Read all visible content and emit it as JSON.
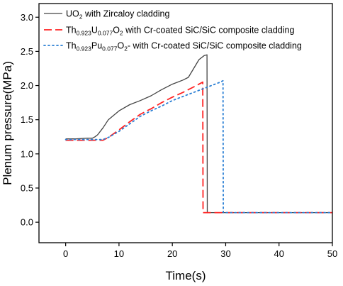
{
  "chart_data": {
    "type": "line",
    "xlabel": "Time(s)",
    "ylabel": "Plenum pressure(MPa)",
    "xlim": [
      -5,
      50
    ],
    "ylim": [
      -0.3,
      3.2
    ],
    "xticks": [
      0,
      10,
      20,
      30,
      40,
      50
    ],
    "yticks": [
      0.0,
      0.5,
      1.0,
      1.5,
      2.0,
      2.5,
      3.0
    ],
    "xtick_labels": [
      "0",
      "10",
      "20",
      "30",
      "40",
      "50"
    ],
    "ytick_labels": [
      "0.0",
      "0.5",
      "1.0",
      "1.5",
      "2.0",
      "2.5",
      "3.0"
    ],
    "grid": false,
    "legend_position": "top-left",
    "series": [
      {
        "legend": [
          {
            "text": "UO",
            "sub": false
          },
          {
            "text": "2",
            "sub": true
          },
          {
            "text": " with Zircaloy cladding",
            "sub": false
          }
        ],
        "color": "#444444",
        "style": "solid",
        "x": [
          0,
          2,
          4,
          5,
          5.5,
          6,
          7,
          8,
          10,
          12,
          14,
          16,
          18,
          20,
          22,
          23,
          24,
          25,
          26,
          26.5,
          26.55,
          30,
          40,
          50
        ],
        "y": [
          1.22,
          1.22,
          1.23,
          1.23,
          1.25,
          1.28,
          1.38,
          1.5,
          1.63,
          1.72,
          1.78,
          1.85,
          1.94,
          2.02,
          2.08,
          2.12,
          2.25,
          2.38,
          2.44,
          2.45,
          0.14,
          0.14,
          0.14,
          0.14
        ]
      },
      {
        "legend": [
          {
            "text": "Th",
            "sub": false
          },
          {
            "text": "0.923",
            "sub": true
          },
          {
            "text": "U",
            "sub": false
          },
          {
            "text": "0.077",
            "sub": true
          },
          {
            "text": "O",
            "sub": false
          },
          {
            "text": "2",
            "sub": true
          },
          {
            "text": " with Cr-coated SiC/SiC composite cladding",
            "sub": false
          }
        ],
        "color": "#ff2222",
        "style": "dashed",
        "x": [
          0,
          3,
          5,
          7,
          8,
          10,
          12,
          14,
          16,
          18,
          20,
          22,
          24,
          25,
          25.7,
          25.75,
          30,
          40,
          50
        ],
        "y": [
          1.2,
          1.2,
          1.2,
          1.2,
          1.24,
          1.35,
          1.47,
          1.58,
          1.66,
          1.75,
          1.83,
          1.9,
          1.98,
          2.02,
          2.05,
          0.14,
          0.14,
          0.14,
          0.14
        ]
      },
      {
        "legend": [
          {
            "text": "Th",
            "sub": false
          },
          {
            "text": "0.923",
            "sub": true
          },
          {
            "text": "Pu",
            "sub": false
          },
          {
            "text": "0.077",
            "sub": true
          },
          {
            "text": "O",
            "sub": false
          },
          {
            "text": "2",
            "sub": true
          },
          {
            "text": "- with Cr-coated SiC/SiC composite cladding",
            "sub": false
          }
        ],
        "color": "#2a7fd4",
        "style": "dotted",
        "x": [
          0,
          3,
          5,
          7,
          8,
          10,
          12,
          14,
          16,
          18,
          20,
          22,
          24,
          26,
          28,
          29,
          29.5,
          29.55,
          35,
          40,
          50
        ],
        "y": [
          1.21,
          1.21,
          1.21,
          1.21,
          1.24,
          1.33,
          1.44,
          1.55,
          1.63,
          1.7,
          1.78,
          1.84,
          1.9,
          1.96,
          2.02,
          2.05,
          2.07,
          0.14,
          0.14,
          0.14,
          0.14
        ]
      }
    ]
  }
}
